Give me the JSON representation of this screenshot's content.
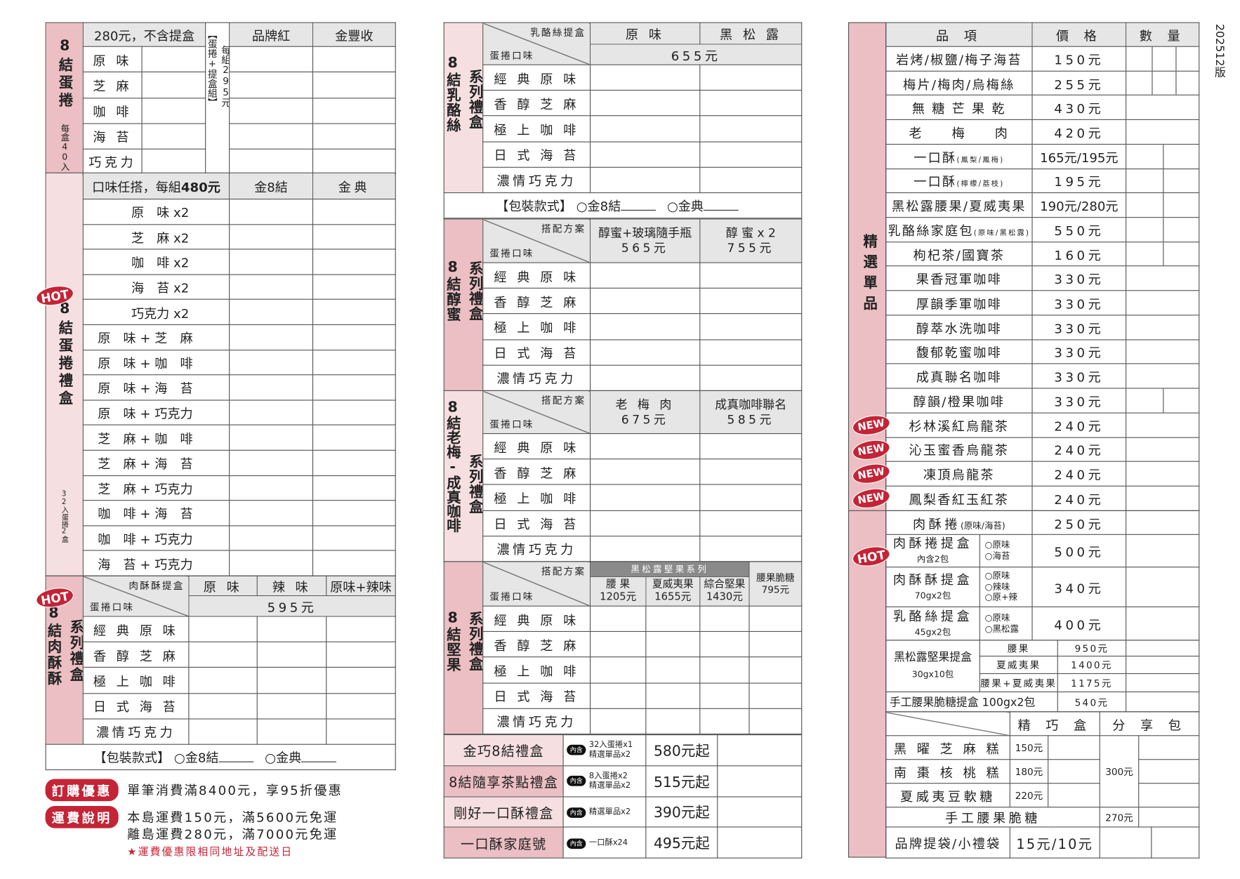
{
  "version": "202512版",
  "left": {
    "egg_roll": {
      "label": "8結蛋捲",
      "sub": "每盒40入",
      "price_note": "280元，不含提盒",
      "set_note_a": "【蛋捲+提盒組】",
      "set_note_b": "每組295元",
      "cols": [
        "品牌紅",
        "金豐收"
      ],
      "flavors": [
        "原 味",
        "芝 麻",
        "咖 啡",
        "海 苔",
        "巧克力"
      ]
    },
    "gift_box": {
      "label": "8結蛋捲禮盒",
      "sub": "32入蛋捲2盒",
      "badge": "HOT",
      "header_a": "口味任搭，每組",
      "header_b": "480元",
      "cols": [
        "金8結",
        "金典"
      ],
      "combos": [
        "原　味 x2",
        "芝　麻 x2",
        "咖　啡 x2",
        "海　苔 x2",
        "巧克力 x2",
        "原　味 + 芝　麻",
        "原　味 + 咖　啡",
        "原　味 + 海　苔",
        "原　味 + 巧克力",
        "芝　麻 + 咖　啡",
        "芝　麻 + 海　苔",
        "芝　麻 + 巧克力",
        "咖　啡 + 海　苔",
        "咖　啡 + 巧克力",
        "海　苔 + 巧克力"
      ]
    },
    "meat_floss": {
      "label": "8結肉酥酥",
      "label2": "系列禮盒",
      "badge": "HOT",
      "diag_top": "肉酥酥提盒",
      "diag_bottom": "蛋捲口味",
      "cols": [
        "原 味",
        "辣 味",
        "原味+辣味"
      ],
      "price": "595元"
    }
  },
  "package": {
    "label": "【包裝款式】",
    "opt1": "○金8結",
    "opt2": "○金典"
  },
  "series_flavors": [
    "經 典 原 味",
    "香 醇 芝 麻",
    "極 上 咖 啡",
    "日 式 海 苔",
    "濃情巧克力"
  ],
  "promos": {
    "order": {
      "badge": "訂購優惠",
      "text": "單筆消費滿8400元，享95折優惠"
    },
    "shipping": {
      "badge": "運費說明",
      "lines": [
        "本島運費150元，滿5600元免運",
        "離島運費280元，滿7000元免運"
      ],
      "note": "★運費優惠限相同地址及配送日"
    }
  },
  "middle": {
    "cheese": {
      "label": "8結乳酪絲",
      "label2": "系列禮盒",
      "diag_top": "乳酪絲提盒",
      "diag_bottom": "蛋捲口味",
      "cols": [
        "原 味",
        "黑 松 露"
      ],
      "price": "655元"
    },
    "honey": {
      "label": "8結醇蜜",
      "label2": "系列禮盒",
      "diag_top": "搭配方案",
      "diag_bottom": "蛋捲口味",
      "cols": [
        {
          "name": "醇蜜+玻璃隨手瓶",
          "price": "565元"
        },
        {
          "name": "醇 蜜 x 2",
          "price": "755元"
        }
      ]
    },
    "plum": {
      "label": "8結老梅-成真咖啡",
      "label2": "系列禮盒",
      "diag_top": "搭配方案",
      "diag_bottom": "蛋捲口味",
      "cols": [
        {
          "name": "老 梅 肉",
          "price": "675元"
        },
        {
          "name": "成真咖啡聯名",
          "price": "585元"
        }
      ]
    },
    "nuts": {
      "label": "8結堅果",
      "label2": "系列禮盒",
      "diag_top": "搭配方案",
      "diag_bottom": "蛋捲口味",
      "band": "黑松露堅果系列",
      "cols": [
        {
          "name": "腰 果",
          "price": "1205元"
        },
        {
          "name": "夏威夷果",
          "price": "1655元"
        },
        {
          "name": "綜合堅果",
          "price": "1430元"
        }
      ],
      "extra": {
        "name": "腰果脆糖",
        "price": "795元"
      }
    },
    "gifts": [
      {
        "name": "金巧8結禮盒",
        "badge": "內含",
        "content": [
          "32入蛋捲x1",
          "精選單品x2"
        ],
        "price": "580元起"
      },
      {
        "name": "8結隨享茶點禮盒",
        "badge": "內含",
        "content": [
          "8入蛋捲x2",
          "精選單品x2"
        ],
        "price": "515元起"
      },
      {
        "name": "剛好一口酥禮盒",
        "badge": "內含",
        "content": [
          "精選單品x2"
        ],
        "price": "390元起"
      },
      {
        "name": "一口酥家庭號",
        "badge": "內含",
        "content": [
          "一口酥x24"
        ],
        "price": "495元起"
      }
    ]
  },
  "right": {
    "label": "精選單品",
    "headers": [
      "品 項",
      "價 格",
      "數 量"
    ],
    "items": [
      {
        "name": "岩烤/椒鹽/梅子海苔",
        "price": "150元"
      },
      {
        "name": "梅片/梅肉/烏梅絲",
        "price": "255元"
      },
      {
        "name": "無 糖 芒 果 乾",
        "price": "430元"
      },
      {
        "name": "老　　梅　　肉",
        "price": "420元"
      },
      {
        "name": "一口酥",
        "sub": "(鳳梨/鳳梅)",
        "price": "165元/195元"
      },
      {
        "name": "一口酥",
        "sub": "(檸檬/荔枝)",
        "price": "195元"
      },
      {
        "name": "黑松露腰果/夏威夷果",
        "price": "190元/280元"
      },
      {
        "name": "乳酪絲家庭包",
        "sub": "(原味/黑松露)",
        "price": "550元"
      },
      {
        "name": "枸杞茶/國寶茶",
        "price": "160元"
      },
      {
        "name": "果香冠軍咖啡",
        "price": "330元"
      },
      {
        "name": "厚韻季軍咖啡",
        "price": "330元"
      },
      {
        "name": "醇萃水洗咖啡",
        "price": "330元"
      },
      {
        "name": "馥郁乾蜜咖啡",
        "price": "330元"
      },
      {
        "name": "成真聯名咖啡",
        "price": "330元"
      },
      {
        "name": "醇韻/橙果咖啡",
        "price": "330元"
      },
      {
        "name": "杉林溪紅烏龍茶",
        "price": "240元",
        "badge": "NEW"
      },
      {
        "name": "沁玉蜜香烏龍茶",
        "price": "240元",
        "badge": "NEW"
      },
      {
        "name": "凍頂烏龍茶",
        "price": "240元",
        "badge": "NEW"
      },
      {
        "name": "鳳梨香紅玉紅茶",
        "price": "240元",
        "badge": "NEW"
      }
    ],
    "meat_roll": {
      "name": "肉酥捲",
      "sub": "(原味/海苔)",
      "price": "250元"
    },
    "boxes": [
      {
        "name": "肉酥捲提盒",
        "sub": "內含2包",
        "options": [
          "○原味",
          "○海苔"
        ],
        "price": "500元",
        "badge": "HOT"
      },
      {
        "name": "肉酥酥提盒",
        "sub": "70gx2包",
        "options": [
          "○原味",
          "○辣味",
          "○原+辣"
        ],
        "price": "340元"
      },
      {
        "name": "乳酪絲提盒",
        "sub": "45gx2包",
        "options": [
          "○原味",
          "○黑松露"
        ],
        "price": "400元"
      }
    ],
    "nut_box": {
      "name": "黑松露堅果提盒",
      "sub": "30gx10包",
      "variants": [
        {
          "name": "腰果",
          "price": "950元"
        },
        {
          "name": "夏威夷果",
          "price": "1400元"
        },
        {
          "name": "腰果+夏威夷果",
          "price": "1175元"
        }
      ]
    },
    "brittle_box": {
      "name": "手工腰果脆糖提盒 100gx2包",
      "price": "540元"
    },
    "cakes": {
      "cols": [
        "精 巧 盒",
        "分 享 包"
      ],
      "share_price": "300元",
      "rows": [
        {
          "name": "黑 曜 芝 麻 糕",
          "price": "150元"
        },
        {
          "name": "南 棗 核 桃 糕",
          "price": "180元"
        },
        {
          "name": "夏威夷豆軟糖",
          "price": "220元"
        }
      ]
    },
    "brittle": {
      "name": "手工腰果脆糖",
      "price": "270元"
    },
    "bag": {
      "name": "品牌提袋/小禮袋",
      "price": "15元/10元"
    }
  },
  "colors": {
    "pink": "#ebbfc3",
    "light_pink": "#f6dfe1",
    "badge_red": "#c42436",
    "header_gray": "#e6e6e6"
  }
}
